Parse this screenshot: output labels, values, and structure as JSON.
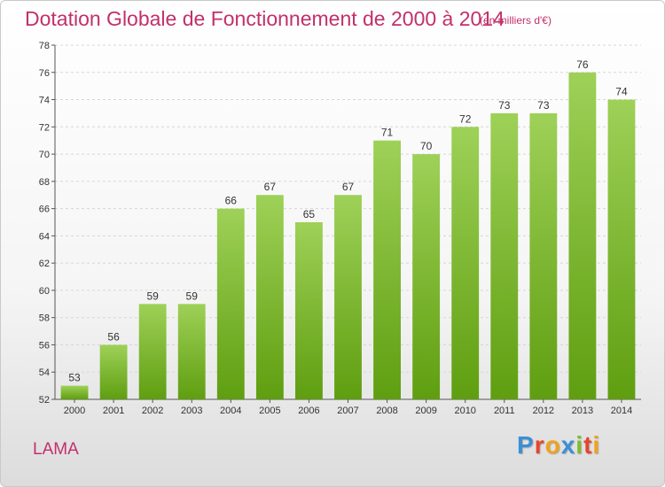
{
  "chart_data": {
    "type": "bar",
    "title": "Dotation Globale de Fonctionnement de 2000 à 2014",
    "subtitle": "(en milliers d'€)",
    "categories": [
      "2000",
      "2001",
      "2002",
      "2003",
      "2004",
      "2005",
      "2006",
      "2007",
      "2008",
      "2009",
      "2010",
      "2011",
      "2012",
      "2013",
      "2014"
    ],
    "values": [
      53,
      56,
      59,
      59,
      66,
      67,
      65,
      67,
      71,
      70,
      72,
      73,
      73,
      76,
      74
    ],
    "xlabel": "",
    "ylabel": "",
    "ylim": [
      52,
      78
    ],
    "yticks": [
      52,
      54,
      56,
      58,
      60,
      62,
      64,
      66,
      68,
      70,
      72,
      74,
      76,
      78
    ],
    "grid": true,
    "legend": "none",
    "bar_color": "#7cbf2a"
  },
  "place_name": "LAMA",
  "logo": {
    "letters": [
      "P",
      "r",
      "o",
      "x",
      "i",
      "t",
      "i"
    ],
    "colors": [
      "#3b8fd6",
      "#e8442e",
      "#f0a21c",
      "#3b8fd6",
      "#7cbf2a",
      "#e8442e",
      "#f0a21c"
    ]
  }
}
